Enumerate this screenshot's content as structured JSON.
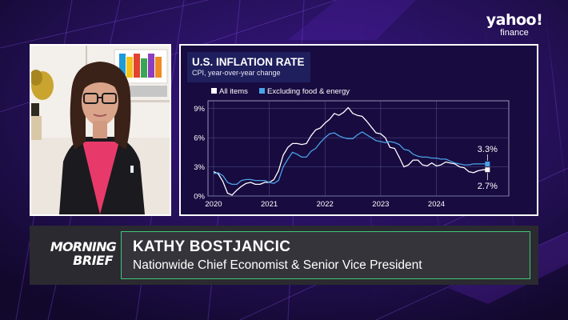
{
  "brand": {
    "logo_line1": "yahoo!",
    "logo_line2": "finance"
  },
  "show": {
    "logo_line1": "MORNING",
    "logo_line2": "BRIEF"
  },
  "guest": {
    "name": "KATHY BOSTJANCIC",
    "title": "Nationwide Chief Economist & Senior Vice President"
  },
  "colors": {
    "background": "#1a0b3d",
    "accent_purple": "#6a2bd0",
    "name_box_border": "#3ec878",
    "series_all_items": "#ffffff",
    "series_core": "#4aa3e8"
  },
  "chart_data": {
    "type": "line",
    "title": "U.S. INFLATION RATE",
    "subtitle": "CPI, year-over-year change",
    "xlabel": "",
    "ylabel": "",
    "x_ticks": [
      "2020",
      "2021",
      "2022",
      "2023",
      "2024"
    ],
    "y_ticks": [
      "0%",
      "3%",
      "6%",
      "9%"
    ],
    "ylim": [
      0,
      9.8
    ],
    "grid": true,
    "legend_position": "top-left",
    "series": [
      {
        "name": "All items",
        "color": "#ffffff",
        "x": [
          2020.0,
          2020.083,
          2020.167,
          2020.25,
          2020.333,
          2020.417,
          2020.5,
          2020.583,
          2020.667,
          2020.75,
          2020.833,
          2020.917,
          2021.0,
          2021.083,
          2021.167,
          2021.25,
          2021.333,
          2021.417,
          2021.5,
          2021.583,
          2021.667,
          2021.75,
          2021.833,
          2021.917,
          2022.0,
          2022.083,
          2022.167,
          2022.25,
          2022.333,
          2022.417,
          2022.5,
          2022.583,
          2022.667,
          2022.75,
          2022.833,
          2022.917,
          2023.0,
          2023.083,
          2023.167,
          2023.25,
          2023.333,
          2023.417,
          2023.5,
          2023.583,
          2023.667,
          2023.75,
          2023.833,
          2023.917,
          2024.0,
          2024.083,
          2024.167,
          2024.25,
          2024.333,
          2024.417,
          2024.5,
          2024.583,
          2024.667,
          2024.75,
          2024.833,
          2024.917
        ],
        "values": [
          2.5,
          2.3,
          1.5,
          0.3,
          0.1,
          0.6,
          1.0,
          1.3,
          1.4,
          1.2,
          1.2,
          1.4,
          1.4,
          1.7,
          2.6,
          4.2,
          5.0,
          5.4,
          5.4,
          5.3,
          5.4,
          6.2,
          6.8,
          7.0,
          7.5,
          7.9,
          8.5,
          8.3,
          8.6,
          9.1,
          8.5,
          8.3,
          8.2,
          7.7,
          7.1,
          6.5,
          6.4,
          6.0,
          5.0,
          4.9,
          4.0,
          3.0,
          3.2,
          3.7,
          3.7,
          3.2,
          3.1,
          3.4,
          3.1,
          3.2,
          3.5,
          3.4,
          3.3,
          3.0,
          2.9,
          2.5,
          2.4,
          2.6,
          2.7,
          2.7
        ]
      },
      {
        "name": "Excluding food & energy",
        "color": "#4aa3e8",
        "x": [
          2020.0,
          2020.083,
          2020.167,
          2020.25,
          2020.333,
          2020.417,
          2020.5,
          2020.583,
          2020.667,
          2020.75,
          2020.833,
          2020.917,
          2021.0,
          2021.083,
          2021.167,
          2021.25,
          2021.333,
          2021.417,
          2021.5,
          2021.583,
          2021.667,
          2021.75,
          2021.833,
          2021.917,
          2022.0,
          2022.083,
          2022.167,
          2022.25,
          2022.333,
          2022.417,
          2022.5,
          2022.583,
          2022.667,
          2022.75,
          2022.833,
          2022.917,
          2023.0,
          2023.083,
          2023.167,
          2023.25,
          2023.333,
          2023.417,
          2023.5,
          2023.583,
          2023.667,
          2023.75,
          2023.833,
          2023.917,
          2024.0,
          2024.083,
          2024.167,
          2024.25,
          2024.333,
          2024.417,
          2024.5,
          2024.583,
          2024.667,
          2024.75,
          2024.833,
          2024.917
        ],
        "values": [
          2.3,
          2.4,
          2.1,
          1.4,
          1.2,
          1.2,
          1.6,
          1.7,
          1.7,
          1.6,
          1.6,
          1.6,
          1.4,
          1.3,
          1.6,
          3.0,
          3.8,
          4.5,
          4.3,
          4.0,
          4.0,
          4.6,
          4.9,
          5.5,
          6.0,
          6.4,
          6.5,
          6.2,
          6.0,
          5.9,
          5.9,
          6.3,
          6.6,
          6.3,
          6.0,
          5.7,
          5.6,
          5.5,
          5.6,
          5.5,
          5.3,
          4.8,
          4.7,
          4.3,
          4.1,
          4.0,
          4.0,
          3.9,
          3.9,
          3.8,
          3.8,
          3.6,
          3.4,
          3.3,
          3.2,
          3.2,
          3.3,
          3.3,
          3.3,
          3.3
        ]
      }
    ],
    "end_labels": {
      "all_items": "2.7%",
      "core": "3.3%"
    }
  }
}
